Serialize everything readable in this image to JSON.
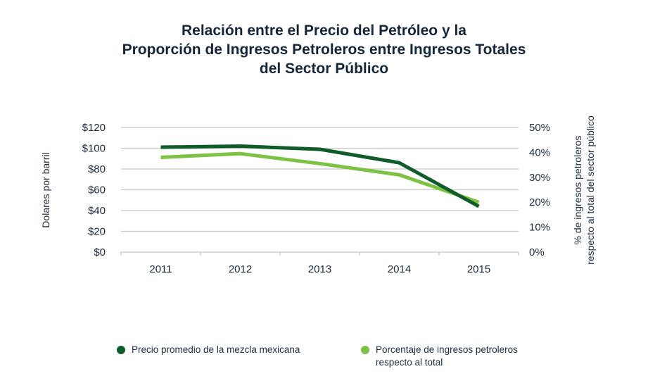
{
  "chart_data": {
    "type": "line",
    "title": [
      "Relación entre el Precio del Petróleo y la",
      "Proporción de Ingresos Petroleros entre Ingresos Totales",
      "del Sector Público"
    ],
    "categories": [
      "2011",
      "2012",
      "2013",
      "2014",
      "2015"
    ],
    "ylabel_left": "Dolares por barril",
    "ylabel_right": [
      "% de ingresos petroleros",
      "respecto al total del sector público"
    ],
    "left_axis": {
      "ylim": [
        0,
        120
      ],
      "ticks": [
        0,
        20,
        40,
        60,
        80,
        100,
        120
      ],
      "tick_labels": [
        "$0",
        "$20",
        "$40",
        "$60",
        "$80",
        "$100",
        "$120"
      ]
    },
    "right_axis": {
      "ylim": [
        0,
        50
      ],
      "ticks": [
        0,
        10,
        20,
        30,
        40,
        50
      ],
      "tick_labels": [
        "0%",
        "10%",
        "20%",
        "30%",
        "40%",
        "50%"
      ]
    },
    "grid": true,
    "legend_position": "bottom",
    "series": [
      {
        "name": "Precio promedio de la mezcla mexicana",
        "axis": "left",
        "color": "#0f5c2a",
        "values": [
          101,
          102,
          99,
          86,
          44
        ]
      },
      {
        "name": "Porcentaje de ingresos petroleros respecto al total",
        "axis": "right",
        "color": "#7dc242",
        "values": [
          38,
          39.5,
          35.5,
          31,
          20
        ]
      }
    ]
  },
  "legend": [
    {
      "label": "Precio promedio de la mezcla mexicana",
      "color": "#0f5c2a"
    },
    {
      "label_lines": [
        "Porcentaje de ingresos petroleros",
        "respecto al total"
      ],
      "color": "#7dc242"
    }
  ]
}
